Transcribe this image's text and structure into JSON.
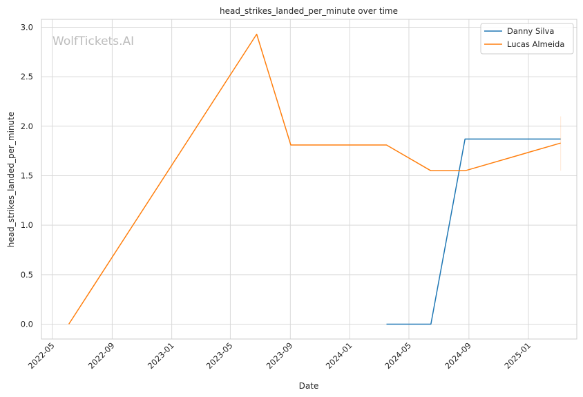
{
  "chart_data": {
    "type": "line",
    "title": "head_strikes_landed_per_minute over time",
    "xlabel": "Date",
    "ylabel": "head_strikes_landed_per_minute",
    "watermark": "WolfTickets.AI",
    "x_ticks": [
      "2022-05",
      "2022-09",
      "2023-01",
      "2023-05",
      "2023-09",
      "2024-01",
      "2024-05",
      "2024-09",
      "2025-01"
    ],
    "y_ticks": [
      "0.0",
      "0.5",
      "1.0",
      "1.5",
      "2.0",
      "2.5",
      "3.0"
    ],
    "xlim": [
      "2022-04-09",
      "2025-04-10"
    ],
    "ylim": [
      -0.15,
      3.08
    ],
    "grid": true,
    "legend_position": "top-right",
    "series": [
      {
        "name": "Danny Silva",
        "color": "#1f77b4",
        "x": [
          "2024-03-16",
          "2024-06-15",
          "2024-08-24",
          "2025-03-08"
        ],
        "y": [
          0.0,
          0.0,
          1.87,
          1.87
        ]
      },
      {
        "name": "Lucas Almeida",
        "color": "#ff7f0e",
        "x": [
          "2022-06-04",
          "2023-06-24",
          "2023-09-02",
          "2024-03-16",
          "2024-06-15",
          "2024-08-24",
          "2025-03-08"
        ],
        "y": [
          0.0,
          2.93,
          1.81,
          1.81,
          1.55,
          1.55,
          1.83
        ]
      }
    ]
  }
}
